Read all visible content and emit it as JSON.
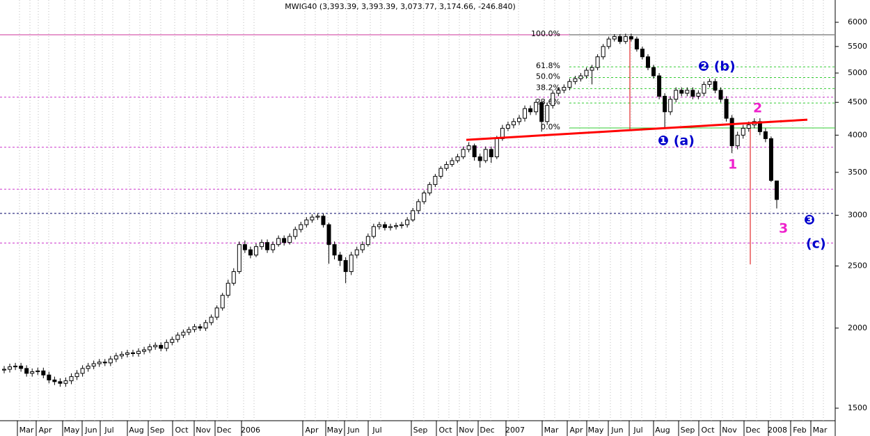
{
  "chart_data": {
    "type": "candlestick",
    "title": "MWIG40 (3,393.39, 3,393.39, 3,073.77, 3,174.66, -246.840)",
    "log_scale": true,
    "ylim": [
      1434,
      6500
    ],
    "yticks": [
      6000,
      5500,
      5000,
      4500,
      4000,
      3500,
      3000,
      2500,
      2000,
      1500
    ],
    "xtick_labels": [
      "Mar",
      "Apr",
      "May",
      "Jun",
      "Jul",
      "Aug",
      "Sep",
      "Oct",
      "Nov",
      "Dec",
      "2006",
      "Apr",
      "May",
      "Jun",
      "Jul",
      "Sep",
      "Oct",
      "Nov",
      "Dec",
      "2007",
      "Mar",
      "Apr",
      "May",
      "Jun",
      "Jul",
      "Aug",
      "Sep",
      "Oct",
      "Nov",
      "Dec",
      "2008",
      "Feb",
      "Mar"
    ],
    "up_color": "#ffffff",
    "down_color": "#000000",
    "open": [
      1720,
      1725,
      1740,
      1745,
      1730,
      1700,
      1710,
      1715,
      1690,
      1660,
      1650,
      1640,
      1655,
      1680,
      1700,
      1730,
      1745,
      1760,
      1770,
      1765,
      1790,
      1810,
      1820,
      1830,
      1825,
      1840,
      1850,
      1870,
      1880,
      1860,
      1900,
      1920,
      1950,
      1970,
      1990,
      2010,
      2000,
      2040,
      2080,
      2150,
      2250,
      2350,
      2450,
      2700,
      2650,
      2600,
      2680,
      2720,
      2650,
      2700,
      2760,
      2720,
      2780,
      2850,
      2900,
      2950,
      2980,
      2990,
      2900,
      2700,
      2600,
      2550,
      2450,
      2600,
      2650,
      2700,
      2780,
      2880,
      2900,
      2870,
      2880,
      2890,
      2900,
      2950,
      3050,
      3150,
      3250,
      3350,
      3450,
      3550,
      3600,
      3650,
      3700,
      3800,
      3850,
      3700,
      3650,
      3800,
      3700,
      3950,
      4100,
      4150,
      4200,
      4250,
      4400,
      4350,
      4500,
      4200,
      4450,
      4650,
      4700,
      4750,
      4850,
      4900,
      4950,
      5050,
      5100,
      5300,
      5500,
      5650,
      5700,
      5600,
      5700,
      5650,
      5450,
      5300,
      5100,
      4950,
      4600,
      4350,
      4550,
      4700,
      4650,
      4700,
      4600,
      4650,
      4800,
      4850,
      4700,
      4550,
      4250,
      3850,
      4000,
      4100,
      4150,
      4200,
      4050,
      3950,
      3393.39
    ],
    "high": [
      1745,
      1760,
      1765,
      1765,
      1750,
      1730,
      1735,
      1735,
      1710,
      1680,
      1670,
      1675,
      1700,
      1720,
      1750,
      1765,
      1780,
      1790,
      1790,
      1810,
      1830,
      1840,
      1850,
      1850,
      1860,
      1870,
      1890,
      1900,
      1900,
      1920,
      1940,
      1970,
      1990,
      2010,
      2030,
      2030,
      2060,
      2100,
      2170,
      2270,
      2380,
      2480,
      2730,
      2740,
      2680,
      2710,
      2750,
      2750,
      2730,
      2790,
      2790,
      2810,
      2880,
      2930,
      2980,
      3010,
      3020,
      3020,
      2920,
      2730,
      2630,
      2580,
      2630,
      2680,
      2730,
      2810,
      2910,
      2930,
      2930,
      2910,
      2920,
      2930,
      2980,
      3080,
      3180,
      3280,
      3380,
      3480,
      3580,
      3640,
      3690,
      3740,
      3840,
      3900,
      3880,
      3740,
      3840,
      3840,
      3990,
      4150,
      4200,
      4250,
      4300,
      4450,
      4450,
      4550,
      4550,
      4500,
      4700,
      4750,
      4800,
      4900,
      4950,
      5000,
      5100,
      5150,
      5350,
      5550,
      5700,
      5750,
      5750,
      5760,
      5760,
      5700,
      5500,
      5350,
      5150,
      5000,
      4650,
      4600,
      4750,
      4750,
      4750,
      4750,
      4700,
      4850,
      4900,
      4900,
      4750,
      4600,
      4300,
      4050,
      4150,
      4200,
      4250,
      4250,
      4100,
      3980,
      3393.39
    ],
    "low": [
      1700,
      1705,
      1720,
      1710,
      1680,
      1680,
      1690,
      1670,
      1640,
      1630,
      1620,
      1620,
      1635,
      1660,
      1680,
      1710,
      1725,
      1740,
      1745,
      1745,
      1770,
      1790,
      1800,
      1805,
      1805,
      1820,
      1830,
      1850,
      1840,
      1840,
      1880,
      1900,
      1930,
      1950,
      1970,
      1980,
      1980,
      2020,
      2060,
      2130,
      2230,
      2330,
      2430,
      2620,
      2570,
      2580,
      2650,
      2620,
      2620,
      2680,
      2690,
      2700,
      2750,
      2820,
      2870,
      2920,
      2950,
      2870,
      2520,
      2560,
      2500,
      2350,
      2420,
      2570,
      2620,
      2680,
      2760,
      2850,
      2840,
      2840,
      2850,
      2860,
      2870,
      2930,
      3020,
      3120,
      3220,
      3320,
      3420,
      3520,
      3570,
      3620,
      3670,
      3760,
      3650,
      3560,
      3620,
      3620,
      3670,
      3920,
      4060,
      4100,
      4150,
      4200,
      4300,
      4300,
      4050,
      4150,
      4400,
      4600,
      4650,
      4700,
      4800,
      4850,
      4900,
      4800,
      5050,
      5250,
      5450,
      5600,
      5550,
      5550,
      5600,
      5400,
      5250,
      5050,
      4900,
      4550,
      4100,
      4300,
      4500,
      4600,
      4600,
      4550,
      4550,
      4600,
      4750,
      4650,
      4500,
      4200,
      3750,
      3800,
      3950,
      4050,
      4100,
      4000,
      3900,
      3380,
      3073.77
    ],
    "close": [
      1725,
      1740,
      1745,
      1730,
      1700,
      1710,
      1715,
      1690,
      1660,
      1650,
      1640,
      1655,
      1680,
      1700,
      1730,
      1745,
      1760,
      1770,
      1765,
      1790,
      1810,
      1820,
      1830,
      1825,
      1840,
      1850,
      1870,
      1880,
      1860,
      1900,
      1920,
      1950,
      1970,
      1990,
      2010,
      2000,
      2040,
      2080,
      2150,
      2250,
      2350,
      2450,
      2700,
      2650,
      2600,
      2680,
      2720,
      2650,
      2700,
      2760,
      2720,
      2780,
      2850,
      2900,
      2950,
      2980,
      2990,
      2900,
      2700,
      2600,
      2550,
      2450,
      2600,
      2650,
      2700,
      2780,
      2880,
      2900,
      2870,
      2880,
      2890,
      2900,
      2950,
      3050,
      3150,
      3250,
      3350,
      3450,
      3550,
      3600,
      3650,
      3700,
      3800,
      3850,
      3700,
      3650,
      3800,
      3700,
      3950,
      4100,
      4150,
      4200,
      4250,
      4400,
      4350,
      4500,
      4200,
      4450,
      4650,
      4700,
      4750,
      4850,
      4900,
      4950,
      5050,
      5100,
      5300,
      5500,
      5650,
      5700,
      5600,
      5700,
      5650,
      5450,
      5300,
      5100,
      4950,
      4600,
      4350,
      4550,
      4700,
      4650,
      4700,
      4600,
      4650,
      4800,
      4850,
      4700,
      4550,
      4250,
      3850,
      4000,
      4100,
      4150,
      4200,
      4050,
      3950,
      3400,
      3174.66
    ],
    "hlines": [
      {
        "value": 5736,
        "color": "#cc3399",
        "dashed": false
      },
      {
        "value": 4584,
        "color": "#cc33cc",
        "dashed": true
      },
      {
        "value": 3830,
        "color": "#cc33cc",
        "dashed": true
      },
      {
        "value": 3294,
        "color": "#cc33cc",
        "dashed": true
      },
      {
        "value": 3020,
        "color": "#000066",
        "dashed": true
      },
      {
        "value": 2715,
        "color": "#cc33cc",
        "dashed": true
      }
    ],
    "fib_color": "#33cc33",
    "fib_levels": [
      {
        "value": 5736,
        "label": "100.0%"
      },
      {
        "value": 5113,
        "label": "61.8%"
      },
      {
        "value": 4920,
        "label": "50.0%"
      },
      {
        "value": 4728,
        "label": "38.2%"
      },
      {
        "value": 4490,
        "label": "23.6%"
      },
      {
        "value": 4105,
        "label": "0.0%"
      }
    ],
    "trendline": {
      "color": "#ff0000",
      "values": [
        3933,
        4228
      ]
    },
    "projections": [
      {
        "values": [
          4080,
          5700
        ]
      },
      {
        "values": [
          4150,
          2514
        ]
      }
    ],
    "annotations": [
      {
        "text": "❶ (a)",
        "color": "#0000cc"
      },
      {
        "text": "❷ (b)",
        "color": "#0000cc"
      },
      {
        "text": "❸",
        "color": "#0000cc"
      },
      {
        "text": "(c)",
        "color": "#0000cc"
      },
      {
        "text": "1",
        "color": "#ee22cc"
      },
      {
        "text": "2",
        "color": "#ee22cc"
      },
      {
        "text": "3",
        "color": "#ee22cc"
      }
    ]
  }
}
